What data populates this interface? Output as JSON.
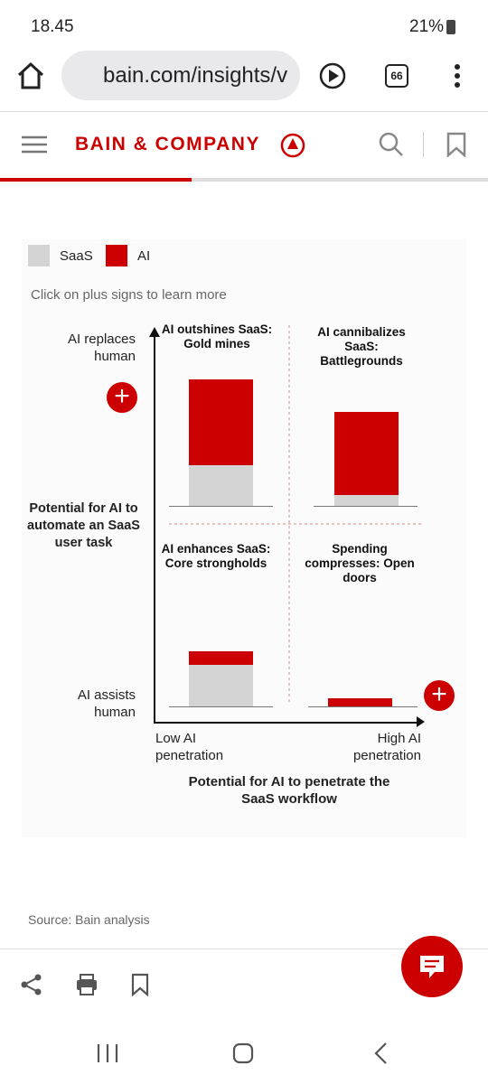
{
  "status_bar": {
    "time": "18.45",
    "battery": "21%"
  },
  "browser": {
    "url": "bain.com/insights/v",
    "tab_count": "66"
  },
  "header": {
    "logo": "BAIN & COMPANY"
  },
  "chart_data": {
    "type": "bar",
    "stacked": true,
    "instruction": "Click on plus signs to learn more",
    "categories": [
      "AI outshines SaaS: Gold mines",
      "AI cannibalizes SaaS: Battlegrounds",
      "AI enhances SaaS: Core strongholds",
      "Spending compresses: Open doors"
    ],
    "series": [
      {
        "name": "SaaS",
        "color": "#d4d4d4",
        "values": [
          45,
          12,
          46,
          0
        ]
      },
      {
        "name": "AI",
        "color": "#cc0000",
        "values": [
          95,
          92,
          15,
          9
        ]
      }
    ],
    "y_label": "Potential for AI to automate an SaaS user task",
    "y_top": "AI replaces human",
    "y_bottom": "AI assists human",
    "x_left": "Low AI penetration",
    "x_right": "High AI penetration",
    "x_label": "Potential for AI to penetrate the SaaS workflow"
  },
  "source": "Source: Bain analysis"
}
